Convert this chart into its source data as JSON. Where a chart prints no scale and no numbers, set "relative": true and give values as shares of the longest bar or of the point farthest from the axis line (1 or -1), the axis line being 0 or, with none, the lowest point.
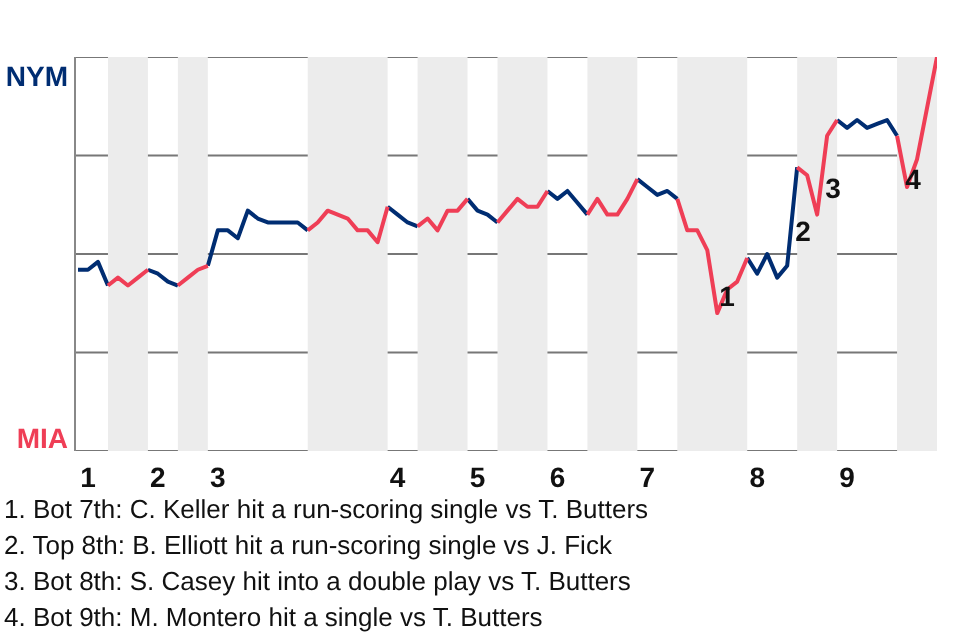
{
  "chart_data": {
    "type": "line",
    "relative": true,
    "categories": [
      null,
      "1",
      null,
      null,
      null,
      null,
      null,
      null,
      "2",
      null,
      null,
      null,
      null,
      null,
      "3",
      null,
      null,
      null,
      null,
      null,
      null,
      null,
      null,
      null,
      null,
      null,
      null,
      null,
      null,
      null,
      null,
      null,
      "4",
      null,
      null,
      null,
      null,
      null,
      null,
      null,
      "5",
      null,
      null,
      null,
      null,
      null,
      null,
      null,
      "6",
      null,
      null,
      null,
      null,
      null,
      null,
      null,
      null,
      "7",
      null,
      null,
      null,
      null,
      null,
      null,
      null,
      null,
      null,
      null,
      "8",
      null,
      null,
      null,
      null,
      null,
      null,
      null,
      null,
      "9",
      null,
      null,
      null,
      null,
      null,
      null,
      null,
      null,
      null
    ],
    "series": [
      {
        "color": "#002d72",
        "values": [
          -0.08,
          -0.08,
          -0.04,
          -0.16,
          null,
          null,
          null,
          -0.08,
          -0.1,
          -0.14,
          -0.16,
          null,
          null,
          -0.06,
          0.12,
          0.12,
          0.08,
          0.22,
          0.18,
          0.16,
          0.16,
          0.16,
          0.16,
          0.12,
          null,
          null,
          null,
          null,
          null,
          null,
          null,
          0.24,
          0.2,
          0.16,
          0.14,
          null,
          null,
          null,
          null,
          0.28,
          0.22,
          0.2,
          0.16,
          null,
          null,
          null,
          null,
          0.32,
          0.28,
          0.32,
          0.26,
          0.2,
          null,
          null,
          null,
          null,
          0.38,
          0.34,
          0.3,
          0.32,
          0.28,
          null,
          null,
          null,
          null,
          null,
          null,
          -0.02,
          -0.1,
          0.0,
          -0.12,
          -0.06,
          0.44,
          null,
          null,
          null,
          0.68,
          0.64,
          0.68,
          0.64,
          0.66,
          0.68,
          0.6,
          null,
          null,
          null,
          null
        ]
      },
      {
        "color": "#ef3e56",
        "values": [
          null,
          null,
          null,
          -0.16,
          -0.12,
          -0.16,
          -0.12,
          -0.08,
          null,
          null,
          -0.16,
          -0.12,
          -0.08,
          -0.06,
          null,
          null,
          null,
          null,
          null,
          null,
          null,
          null,
          null,
          0.12,
          0.16,
          0.22,
          0.2,
          0.18,
          0.12,
          0.12,
          0.06,
          0.24,
          null,
          null,
          0.14,
          0.18,
          0.12,
          0.22,
          0.22,
          0.28,
          null,
          null,
          0.16,
          0.22,
          0.28,
          0.24,
          0.24,
          0.32,
          null,
          null,
          null,
          0.2,
          0.28,
          0.2,
          0.2,
          0.28,
          0.38,
          null,
          null,
          null,
          0.28,
          0.12,
          0.12,
          0.02,
          -0.3,
          -0.18,
          -0.14,
          -0.02,
          null,
          null,
          null,
          null,
          0.44,
          0.4,
          0.2,
          0.6,
          0.68,
          null,
          null,
          null,
          null,
          null,
          0.6,
          0.34,
          0.48,
          0.74,
          1.0
        ]
      }
    ],
    "ref_lines": [
      {
        "axis": "y",
        "value": 1,
        "color": "#777777"
      },
      {
        "axis": "y",
        "value": 0.5,
        "color": "#777777"
      },
      {
        "axis": "y",
        "value": 0,
        "color": "#777777"
      },
      {
        "axis": "y",
        "value": -0.5,
        "color": "#777777"
      },
      {
        "axis": "y",
        "value": -1,
        "color": "#777777"
      }
    ],
    "annotations": [
      "NYM",
      "MIA",
      "1",
      "2",
      "3",
      "4",
      "1. Bot 7th: C. Keller hit a run-scoring single vs T. Butters",
      "2. Top 8th: B. Elliott hit a run-scoring single vs J. Fick",
      "3. Bot 8th: S. Casey hit into a double play vs T. Butters",
      "4. Bot 9th: M. Montero hit a single vs T. Butters"
    ]
  }
}
